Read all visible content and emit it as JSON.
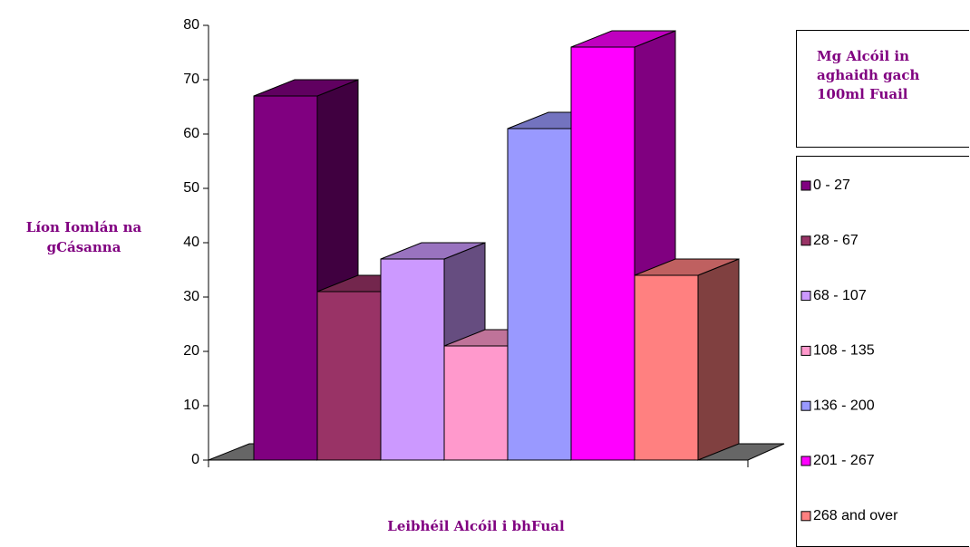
{
  "chart_data": {
    "type": "bar3d",
    "y_label": "Líon Iomlán na gCásanna",
    "x_label": "Leibhéil Alcóil i bhFual",
    "legend_title": "Mg Alcóil in aghaidh gach 100ml Fuail",
    "ylim": [
      0,
      80
    ],
    "yticks": [
      0,
      10,
      20,
      30,
      40,
      50,
      60,
      70,
      80
    ],
    "series": [
      {
        "name": "0 - 27",
        "color": "#800080",
        "values": [
          67
        ]
      },
      {
        "name": "28 - 67",
        "color": "#993366",
        "values": [
          31
        ]
      },
      {
        "name": "68 - 107",
        "color": "#cc99ff",
        "values": [
          37
        ]
      },
      {
        "name": "108 - 135",
        "color": "#ff99cc",
        "values": [
          21
        ]
      },
      {
        "name": "136 - 200",
        "color": "#9999ff",
        "values": [
          61
        ]
      },
      {
        "name": "201 - 267",
        "color": "#ff00ff",
        "values": [
          76
        ]
      },
      {
        "name": "268 and over",
        "color": "#ff8080",
        "values": [
          34
        ]
      }
    ]
  }
}
